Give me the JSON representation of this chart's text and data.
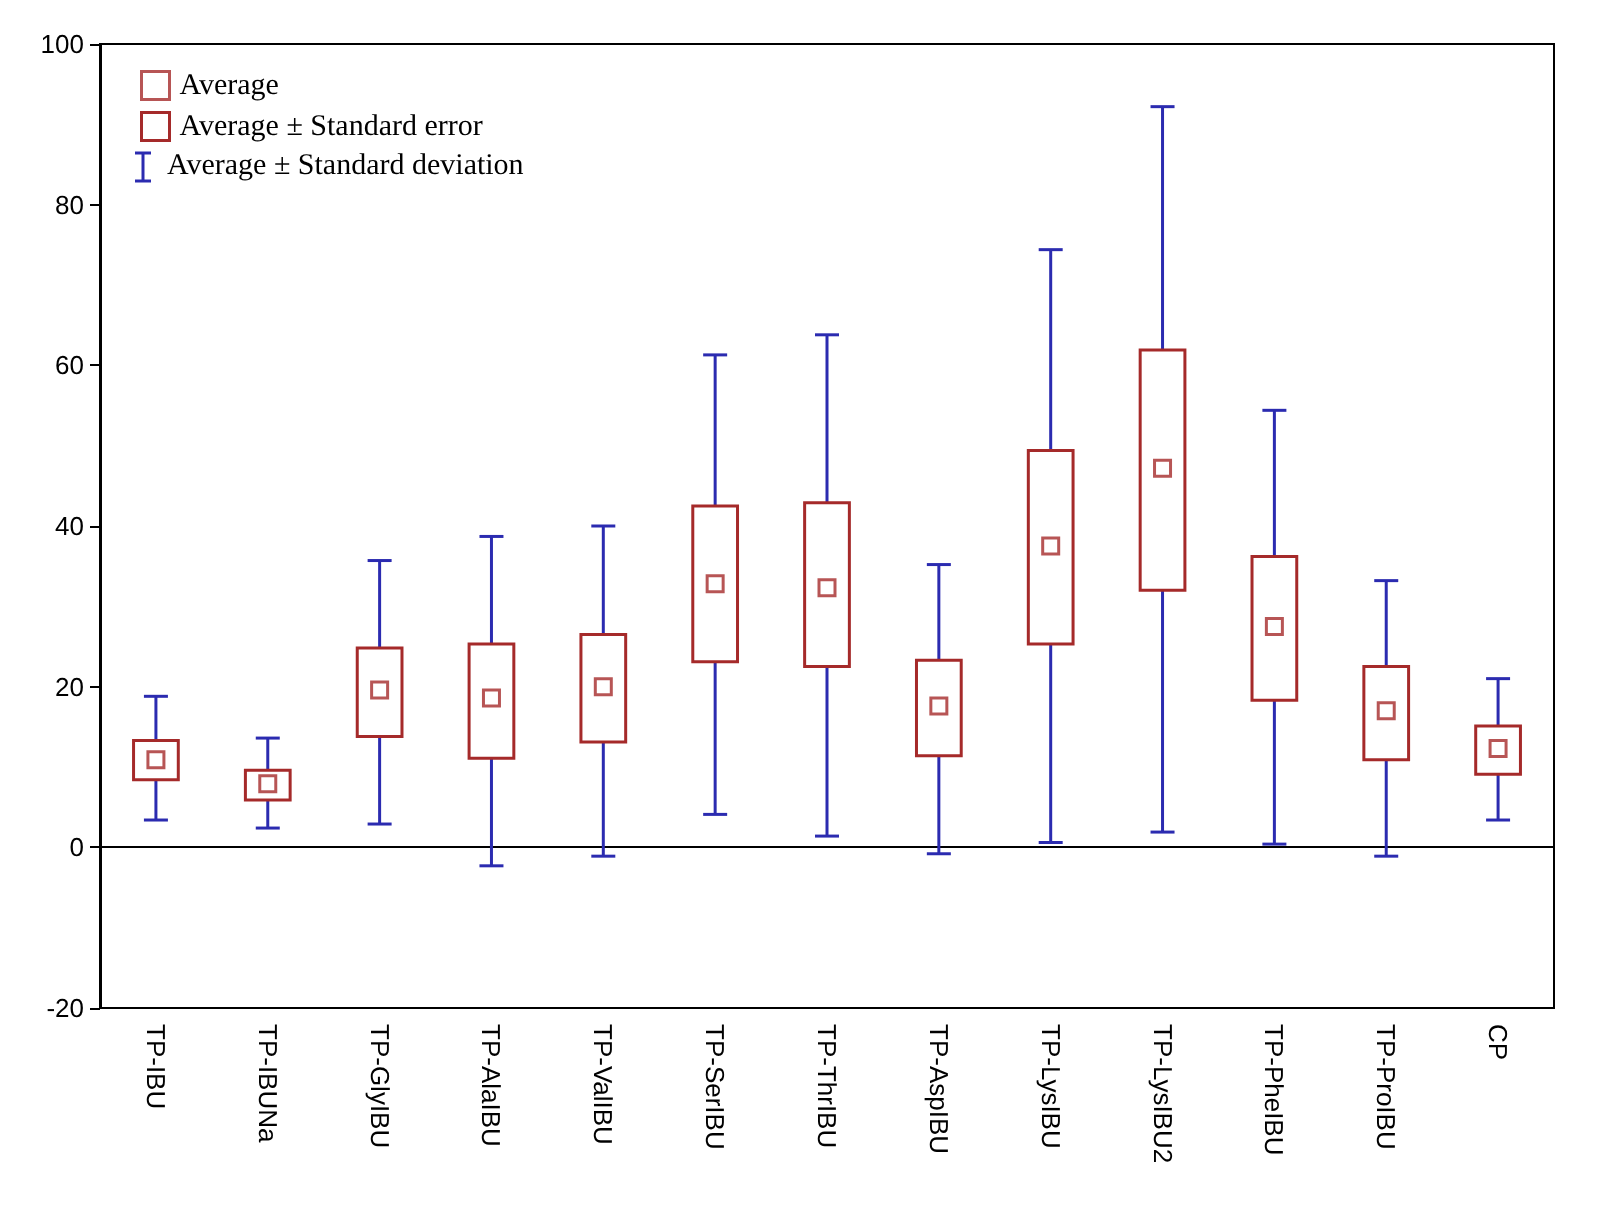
{
  "chart_data": {
    "type": "scatter",
    "categories": [
      "TP-IBU",
      "TP-IBUNa",
      "TP-GlyIBU",
      "TP-AlaIBU",
      "TP-ValIBU",
      "TP-SerIBU",
      "TP-ThrIBU",
      "TP-AspIBU",
      "TP-LysIBU",
      "TP-LysIBU2",
      "TP-PheIBU",
      "TP-ProIBU",
      "CP"
    ],
    "series": [
      {
        "name": "Average",
        "marker": "square",
        "color": "#a52a2a",
        "values": [
          10.9,
          7.9,
          19.6,
          18.6,
          20,
          32.8,
          32.3,
          17.6,
          37.5,
          47.2,
          27.5,
          17,
          12.3
        ],
        "errors": [
          [
            3.4,
            18.8
          ],
          [
            2.4,
            13.6
          ],
          [
            2.9,
            35.7
          ],
          [
            -2.3,
            38.7
          ],
          [
            -1.1,
            40
          ],
          [
            4.1,
            61.3
          ],
          [
            1.4,
            63.8
          ],
          [
            -0.8,
            35.2
          ],
          [
            0.6,
            74.4
          ],
          [
            1.9,
            92.2
          ],
          [
            0.4,
            54.4
          ],
          [
            -1.1,
            33.2
          ],
          [
            3.4,
            21
          ]
        ]
      },
      {
        "name": "Average ± Standard error",
        "type": "bar",
        "color": "#a52a2a",
        "base": [
          8.4,
          5.9,
          13.8,
          11.1,
          13.1,
          23.1,
          22.5,
          11.4,
          25.3,
          32,
          18.3,
          10.9,
          9.1
        ],
        "values": [
          4.9,
          3.7,
          11,
          14.2,
          13.4,
          19.4,
          20.4,
          11.9,
          24.1,
          29.9,
          17.9,
          11.6,
          6
        ]
      }
    ],
    "annotations": [
      "Average ± Standard deviation"
    ],
    "ylim": [
      -20,
      100
    ],
    "yticks": [
      -20,
      0,
      20,
      40,
      60,
      80,
      100
    ],
    "grid": false,
    "legend": "top left"
  }
}
